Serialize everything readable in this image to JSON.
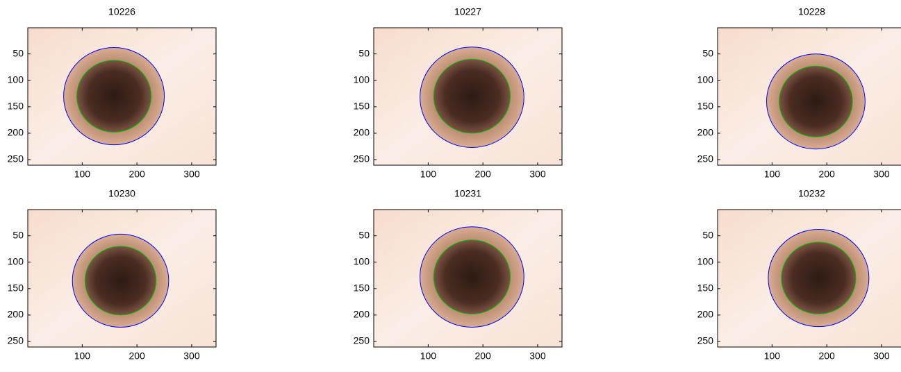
{
  "chart_data": [
    {
      "type": "image",
      "title": "10226",
      "xlim": [
        0.5,
        344.5
      ],
      "ylim": [
        0.5,
        260.5
      ],
      "xticks": [
        100,
        200,
        300
      ],
      "yticks": [
        50,
        100,
        150,
        200,
        250
      ],
      "outer": {
        "cx": 158,
        "cy": 130,
        "r": 92
      },
      "inner": {
        "cx": 158,
        "cy": 130,
        "r": 68
      },
      "outer_color": "#0000ff",
      "inner_color": "#00c000"
    },
    {
      "type": "image",
      "title": "10227",
      "xlim": [
        0.5,
        344.5
      ],
      "ylim": [
        0.5,
        260.5
      ],
      "xticks": [
        100,
        200,
        300
      ],
      "yticks": [
        50,
        100,
        150,
        200,
        250
      ],
      "outer": {
        "cx": 180,
        "cy": 132,
        "r": 95
      },
      "inner": {
        "cx": 180,
        "cy": 130,
        "r": 70
      },
      "outer_color": "#0000ff",
      "inner_color": "#00c000"
    },
    {
      "type": "image",
      "title": "10228",
      "xlim": [
        0.5,
        344.5
      ],
      "ylim": [
        0.5,
        260.5
      ],
      "xticks": [
        100,
        200,
        300
      ],
      "yticks": [
        50,
        100,
        150,
        200,
        250
      ],
      "outer": {
        "cx": 180,
        "cy": 140,
        "r": 90
      },
      "inner": {
        "cx": 180,
        "cy": 140,
        "r": 67
      },
      "outer_color": "#0000ff",
      "inner_color": "#00c000"
    },
    {
      "type": "image",
      "title": "10230",
      "xlim": [
        0.5,
        344.5
      ],
      "ylim": [
        0.5,
        260.5
      ],
      "xticks": [
        100,
        200,
        300
      ],
      "yticks": [
        50,
        100,
        150,
        200,
        250
      ],
      "outer": {
        "cx": 170,
        "cy": 135,
        "r": 88
      },
      "inner": {
        "cx": 170,
        "cy": 135,
        "r": 65
      },
      "outer_color": "#0000ff",
      "inner_color": "#00c000"
    },
    {
      "type": "image",
      "title": "10231",
      "xlim": [
        0.5,
        344.5
      ],
      "ylim": [
        0.5,
        260.5
      ],
      "xticks": [
        100,
        200,
        300
      ],
      "yticks": [
        50,
        100,
        150,
        200,
        250
      ],
      "outer": {
        "cx": 180,
        "cy": 128,
        "r": 95
      },
      "inner": {
        "cx": 180,
        "cy": 128,
        "r": 70
      },
      "outer_color": "#0000ff",
      "inner_color": "#00c000"
    },
    {
      "type": "image",
      "title": "10232",
      "xlim": [
        0.5,
        344.5
      ],
      "ylim": [
        0.5,
        260.5
      ],
      "xticks": [
        100,
        200,
        300
      ],
      "yticks": [
        50,
        100,
        150,
        200,
        250
      ],
      "outer": {
        "cx": 185,
        "cy": 130,
        "r": 92
      },
      "inner": {
        "cx": 185,
        "cy": 130,
        "r": 68
      },
      "outer_color": "#0000ff",
      "inner_color": "#00c000"
    }
  ]
}
